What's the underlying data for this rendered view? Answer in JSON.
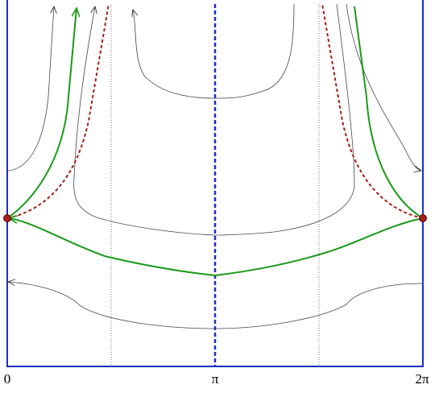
{
  "axis": {
    "labels": [
      "0",
      "π",
      "2π"
    ]
  }
}
